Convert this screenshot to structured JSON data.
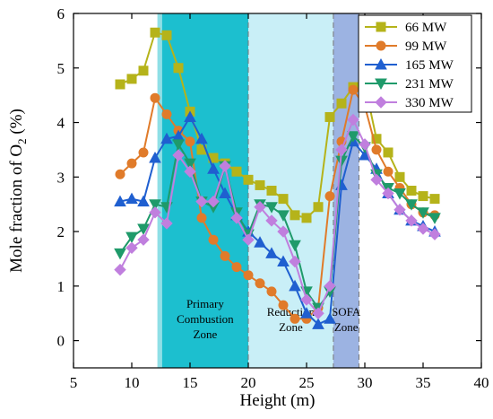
{
  "chart_data": {
    "type": "line",
    "xlabel": "Height (m)",
    "ylabel_main": "Mole fraction of O",
    "ylabel_sub": "2",
    "ylabel_unit": " (%)",
    "xlim": [
      5,
      40
    ],
    "ylim": [
      -0.5,
      6
    ],
    "xticks": [
      5,
      10,
      15,
      20,
      25,
      30,
      35,
      40
    ],
    "yticks": [
      0,
      1,
      2,
      3,
      4,
      5,
      6
    ],
    "grid": false,
    "legend_position": "top-right",
    "zones": [
      {
        "name": "primary",
        "x0": 12.2,
        "x1": 12.6,
        "color": "#8fdfe6",
        "label_lines": []
      },
      {
        "name": "primary-combustion",
        "x0": 12.6,
        "x1": 20.0,
        "color": "#1cbfcf",
        "label_lines": [
          "Primary",
          "Combustion",
          "Zone"
        ]
      },
      {
        "name": "reduction",
        "x0": 20.0,
        "x1": 27.3,
        "color": "#c9eff7",
        "label_lines": [
          "Reduction",
          "Zone"
        ]
      },
      {
        "name": "sofa",
        "x0": 27.3,
        "x1": 29.5,
        "color": "#9cb3e2",
        "label_lines": [
          "SOFA",
          "Zone"
        ]
      }
    ],
    "series": [
      {
        "name": "66 MW",
        "color": "#b5b31a",
        "marker": "square",
        "x": [
          9,
          10,
          11,
          12,
          13,
          14,
          15,
          16,
          17,
          18,
          19,
          20,
          21,
          22,
          23,
          24,
          25,
          26,
          27,
          28,
          29,
          30,
          31,
          32,
          33,
          34,
          35,
          36
        ],
        "y": [
          4.7,
          4.8,
          4.95,
          5.65,
          5.6,
          5.0,
          4.2,
          3.5,
          3.35,
          3.25,
          3.1,
          2.95,
          2.85,
          2.75,
          2.6,
          2.3,
          2.25,
          2.45,
          4.1,
          4.35,
          4.65,
          4.7,
          3.7,
          3.45,
          3.0,
          2.75,
          2.65,
          2.6
        ]
      },
      {
        "name": "99 MW",
        "color": "#e07b2a",
        "marker": "circle",
        "x": [
          9,
          10,
          11,
          12,
          13,
          14,
          15,
          16,
          17,
          18,
          19,
          20,
          21,
          22,
          23,
          24,
          25,
          26,
          27,
          28,
          29,
          30,
          31,
          32,
          33,
          34,
          35,
          36
        ],
        "y": [
          3.05,
          3.25,
          3.45,
          4.45,
          4.15,
          3.85,
          3.65,
          2.25,
          1.85,
          1.55,
          1.35,
          1.2,
          1.05,
          0.9,
          0.65,
          0.4,
          0.4,
          0.6,
          2.65,
          3.65,
          4.6,
          4.3,
          3.5,
          3.1,
          2.8,
          2.5,
          2.35,
          2.3
        ]
      },
      {
        "name": "165 MW",
        "color": "#1f5fd0",
        "marker": "triangle-up",
        "x": [
          9,
          10,
          11,
          12,
          13,
          14,
          15,
          16,
          17,
          18,
          19,
          20,
          21,
          22,
          23,
          24,
          25,
          26,
          27,
          28,
          29,
          30,
          31,
          32,
          33,
          34,
          35,
          36
        ],
        "y": [
          2.55,
          2.6,
          2.55,
          3.35,
          3.7,
          3.75,
          4.1,
          3.7,
          3.15,
          2.7,
          2.3,
          2.0,
          1.8,
          1.6,
          1.45,
          1.0,
          0.5,
          0.3,
          0.4,
          2.85,
          3.65,
          3.4,
          3.15,
          2.7,
          2.4,
          2.2,
          2.1,
          2.0
        ]
      },
      {
        "name": "231 MW",
        "color": "#1f9a6a",
        "marker": "triangle-down",
        "x": [
          9,
          10,
          11,
          12,
          13,
          14,
          15,
          16,
          17,
          18,
          19,
          20,
          21,
          22,
          23,
          24,
          25,
          26,
          27,
          28,
          29,
          30,
          31,
          32,
          33,
          34,
          35,
          36
        ],
        "y": [
          1.6,
          1.9,
          2.05,
          2.5,
          2.45,
          3.6,
          3.25,
          2.55,
          2.45,
          3.2,
          2.35,
          1.95,
          2.5,
          2.45,
          2.3,
          1.75,
          0.9,
          0.6,
          0.9,
          3.3,
          3.75,
          3.55,
          3.05,
          2.8,
          2.7,
          2.5,
          2.35,
          2.25
        ]
      },
      {
        "name": "330 MW",
        "color": "#c07fde",
        "marker": "diamond",
        "x": [
          9,
          10,
          11,
          12,
          13,
          14,
          15,
          16,
          17,
          18,
          19,
          20,
          21,
          22,
          23,
          24,
          25,
          26,
          27,
          28,
          29,
          30,
          31,
          32,
          33,
          34,
          35,
          36
        ],
        "y": [
          1.3,
          1.7,
          1.85,
          2.35,
          2.15,
          3.4,
          3.1,
          2.55,
          2.55,
          3.2,
          2.25,
          1.85,
          2.45,
          2.2,
          2.0,
          1.45,
          0.75,
          0.5,
          1.0,
          3.5,
          4.05,
          3.6,
          2.95,
          2.7,
          2.4,
          2.2,
          2.05,
          1.95
        ]
      }
    ]
  }
}
